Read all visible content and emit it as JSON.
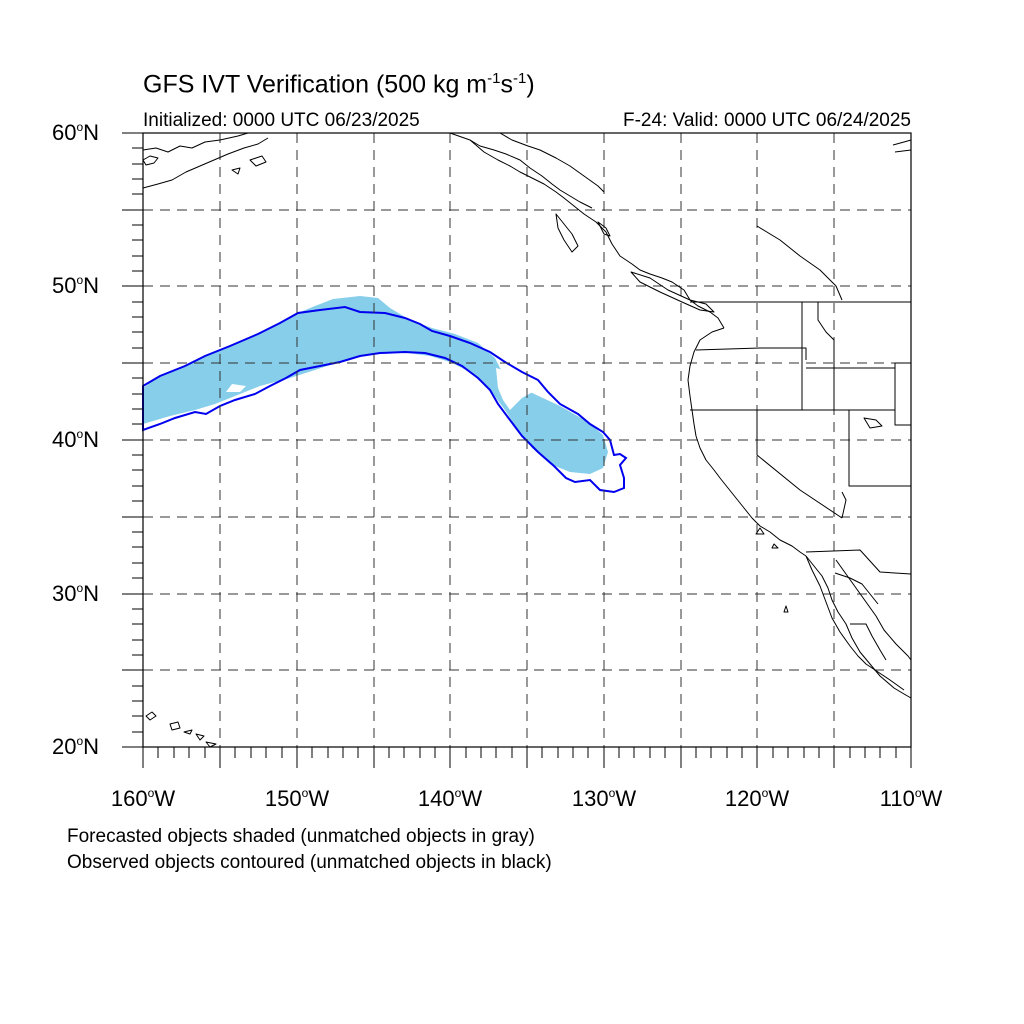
{
  "title": {
    "prefix": "GFS IVT Verification (500 kg m",
    "exp1": "-1",
    "mid": "s",
    "exp2": "-1",
    "suffix": ")"
  },
  "initialized": "Initialized: 0000 UTC 06/23/2025",
  "valid": "F-24: Valid: 0000 UTC 06/24/2025",
  "map": {
    "lat_labels": [
      {
        "value": "60",
        "hemi": "N"
      },
      {
        "value": "50",
        "hemi": "N"
      },
      {
        "value": "40",
        "hemi": "N"
      },
      {
        "value": "30",
        "hemi": "N"
      },
      {
        "value": "20",
        "hemi": "N"
      }
    ],
    "lon_labels": [
      {
        "value": "160",
        "hemi": "W"
      },
      {
        "value": "150",
        "hemi": "W"
      },
      {
        "value": "140",
        "hemi": "W"
      },
      {
        "value": "130",
        "hemi": "W"
      },
      {
        "value": "120",
        "hemi": "W"
      },
      {
        "value": "110",
        "hemi": "W"
      }
    ],
    "degree_symbol": "o",
    "extent": {
      "lon_min": -160,
      "lon_max": -110,
      "lat_min": 20,
      "lat_max": 60
    },
    "grid_interval_deg": 5,
    "gridlines": "dashed",
    "colors": {
      "forecast_fill": "#87ceeb",
      "observed_contour": "#0000ee",
      "coastline": "#000000",
      "grid": "#333333"
    }
  },
  "captions": [
    "Forecasted objects shaded (unmatched objects in gray)",
    "Observed objects contoured (unmatched objects in black)"
  ]
}
